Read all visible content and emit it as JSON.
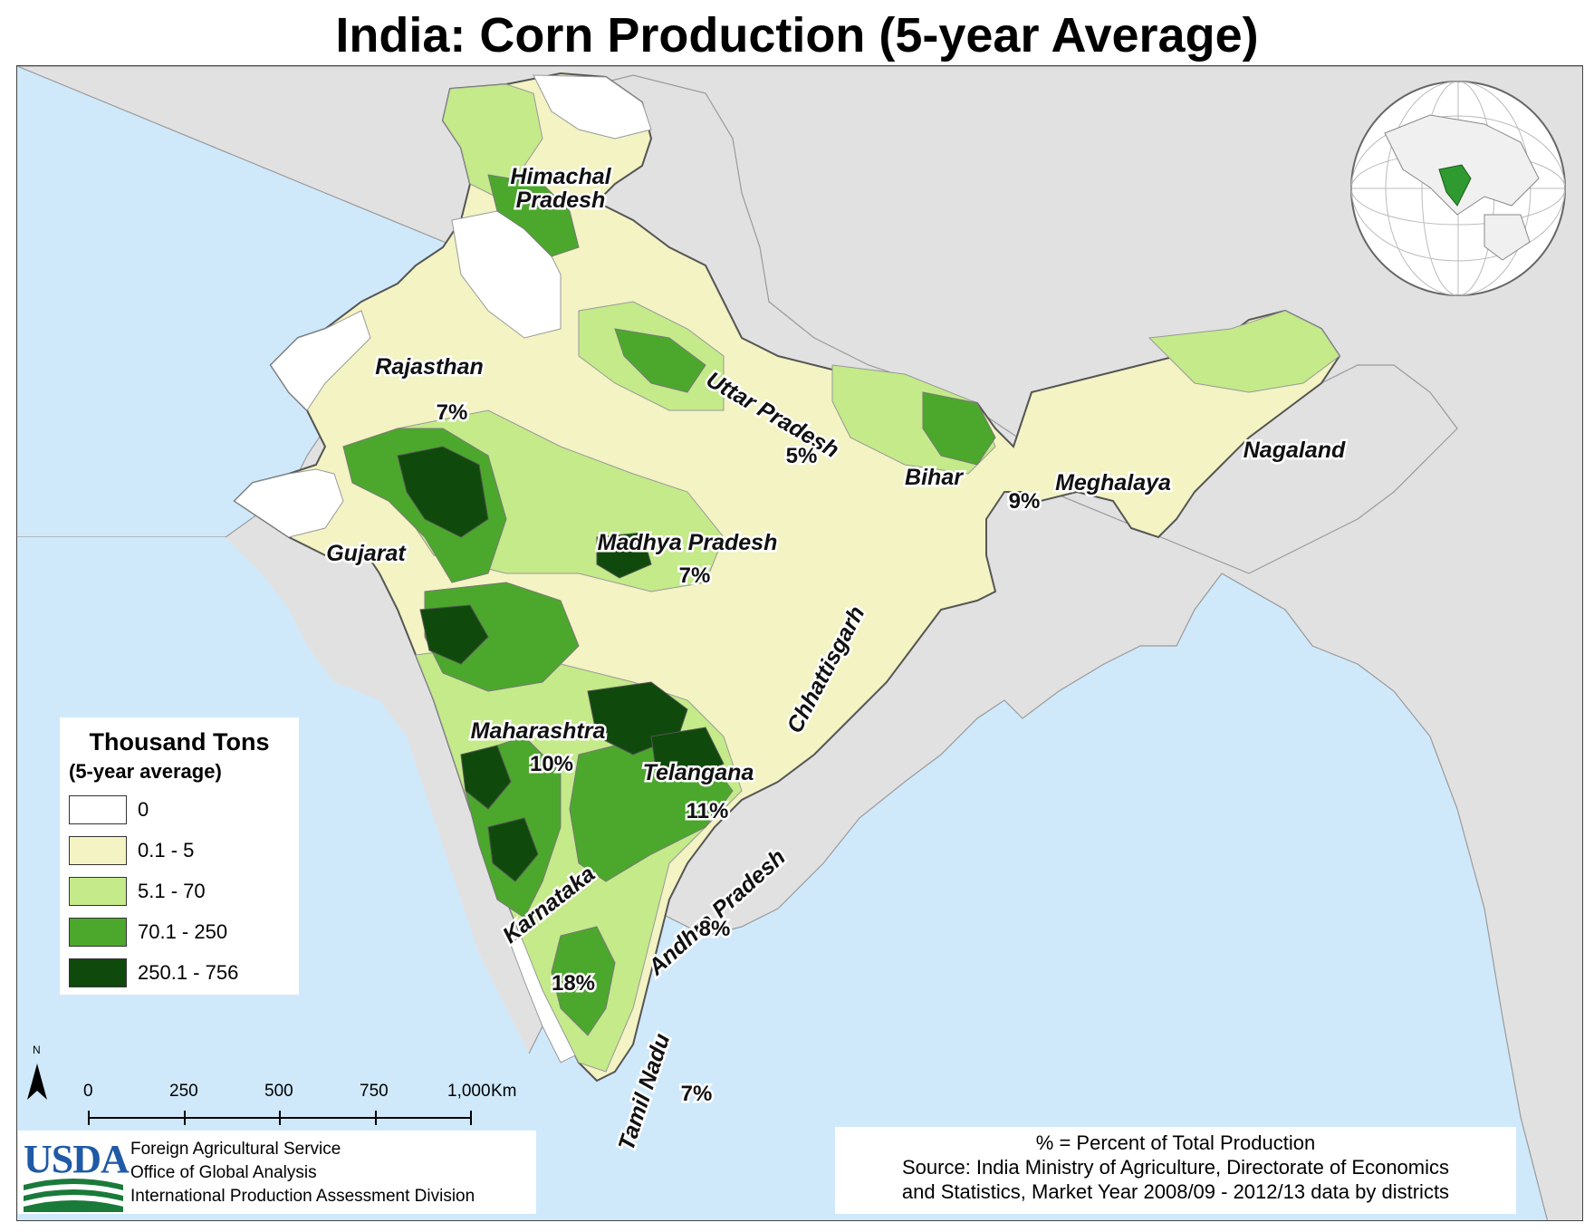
{
  "title": "India: Corn Production (5-year Average)",
  "colors": {
    "ocean": "#cfe9fb",
    "land_other": "#e1e1e1",
    "zero": "#ffffff",
    "c1": "#f3f3c3",
    "c2": "#c4ea8a",
    "c3": "#4ca82c",
    "c4": "#0f4a0c",
    "border": "#8a8a8a"
  },
  "legend": {
    "title": "Thousand Tons",
    "subtitle": "(5-year average)",
    "items": [
      {
        "label": "0",
        "color": "#ffffff"
      },
      {
        "label": "0.1 - 5",
        "color": "#f3f3c3"
      },
      {
        "label": "5.1 - 70",
        "color": "#c4ea8a"
      },
      {
        "label": "70.1 - 250",
        "color": "#4ca82c"
      },
      {
        "label": "250.1 - 756",
        "color": "#0f4a0c"
      }
    ]
  },
  "regions": [
    {
      "name": "Himachal Pradesh",
      "lines": [
        "Himachal",
        "Pradesh"
      ],
      "pct": ""
    },
    {
      "name": "Rajasthan",
      "lines": [
        "Rajasthan"
      ],
      "pct": "7%"
    },
    {
      "name": "Uttar Pradesh",
      "lines": [
        "Uttar Pradesh"
      ],
      "pct": "5%"
    },
    {
      "name": "Bihar",
      "lines": [
        "Bihar"
      ],
      "pct": "9%"
    },
    {
      "name": "Meghalaya",
      "lines": [
        "Meghalaya"
      ],
      "pct": ""
    },
    {
      "name": "Nagaland",
      "lines": [
        "Nagaland"
      ],
      "pct": ""
    },
    {
      "name": "Gujarat",
      "lines": [
        "Gujarat"
      ],
      "pct": ""
    },
    {
      "name": "Madhya Pradesh",
      "lines": [
        "Madhya Pradesh"
      ],
      "pct": "7%"
    },
    {
      "name": "Chhattisgarh",
      "lines": [
        "Chhattisgarh"
      ],
      "pct": ""
    },
    {
      "name": "Maharashtra",
      "lines": [
        "Maharashtra"
      ],
      "pct": "10%"
    },
    {
      "name": "Telangana",
      "lines": [
        "Telangana"
      ],
      "pct": "11%"
    },
    {
      "name": "Karnataka",
      "lines": [
        "Karnataka"
      ],
      "pct": "18%"
    },
    {
      "name": "Andhra Pradesh",
      "lines": [
        "Andhra Pradesh"
      ],
      "pct": "8%"
    },
    {
      "name": "Tamil Nadu",
      "lines": [
        "Tamil Nadu"
      ],
      "pct": "7%"
    }
  ],
  "scale_bar": {
    "north": "N",
    "ticks": [
      "0",
      "250",
      "500",
      "750",
      "1,000"
    ],
    "unit": "Km"
  },
  "credits": {
    "logo": "USDA",
    "lines": [
      "Foreign Agricultural Service",
      "Office of Global Analysis",
      "International Production Assessment Division"
    ]
  },
  "source": {
    "lines": [
      "% = Percent of Total Production",
      "Source: India Ministry of Agriculture, Directorate of Economics",
      "and Statistics, Market Year 2008/09 - 2012/13 data by districts"
    ]
  }
}
